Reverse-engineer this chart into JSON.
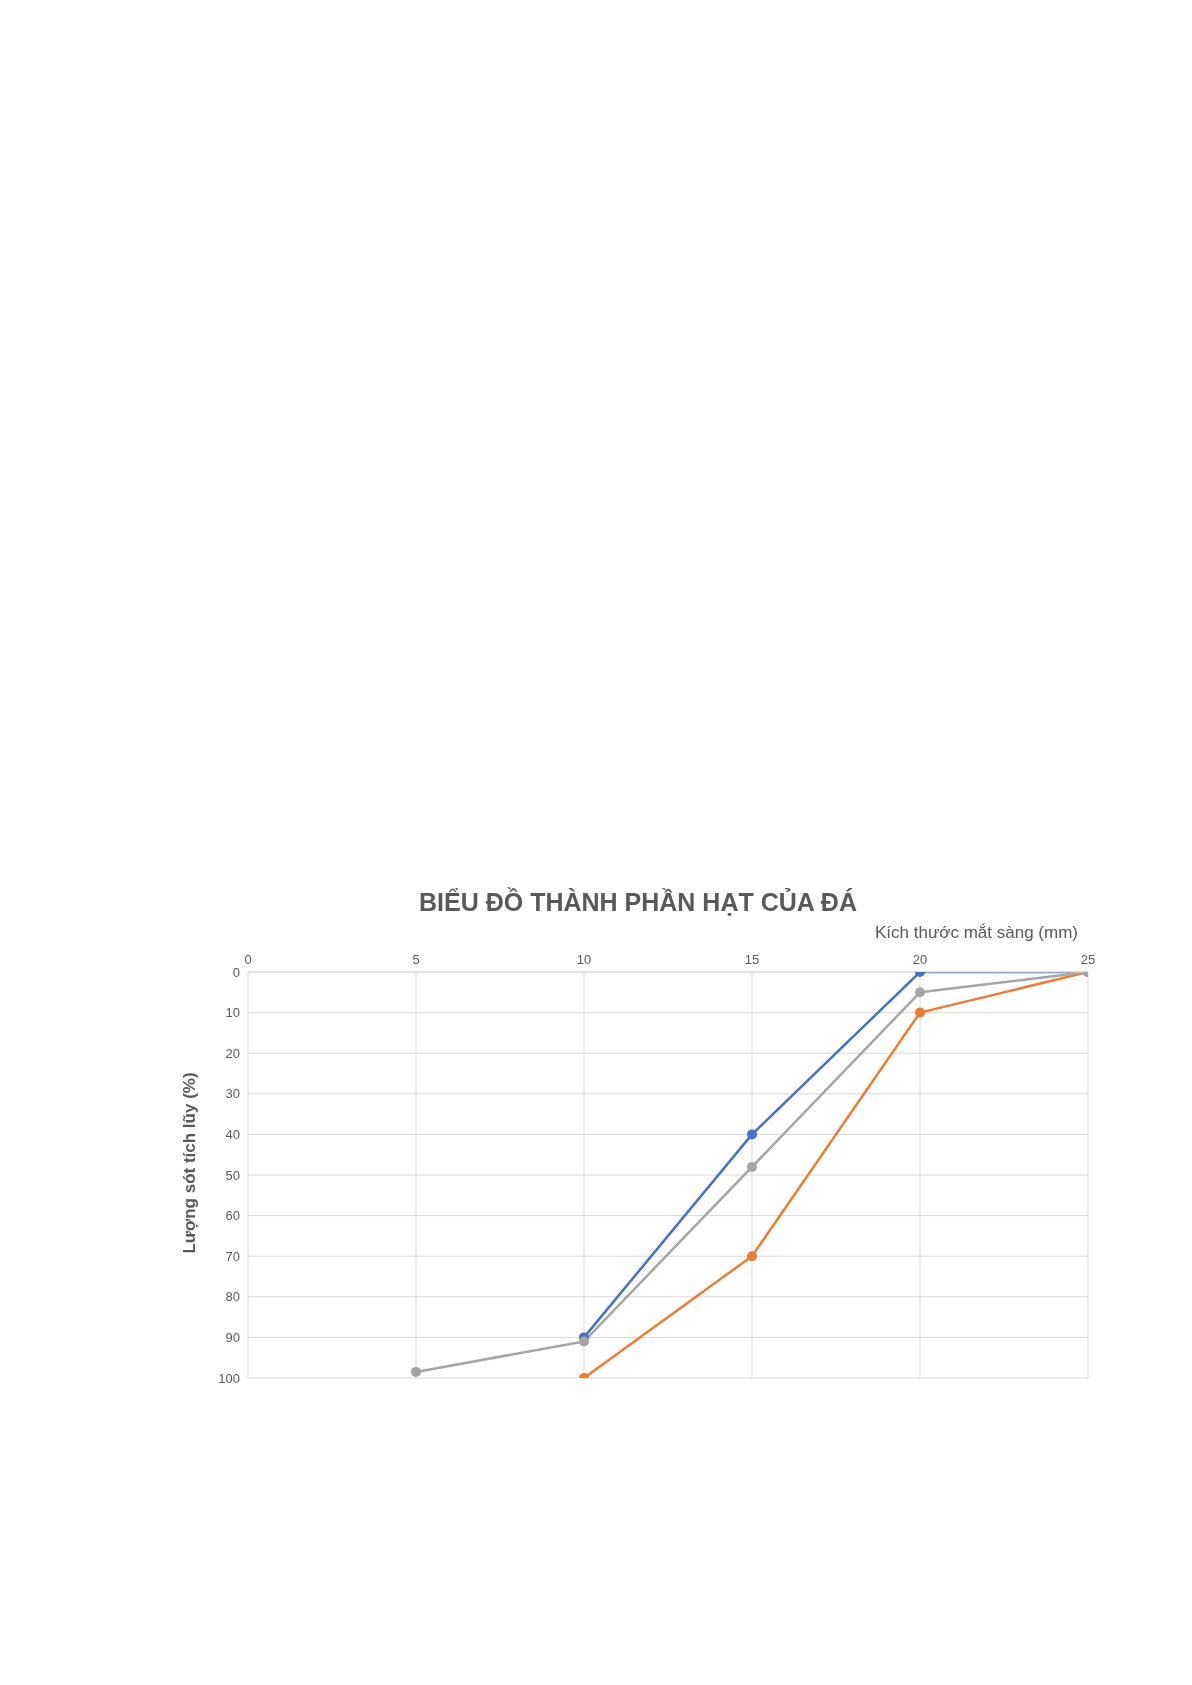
{
  "chart_data": {
    "type": "line",
    "title": "BIỂU ĐỒ THÀNH PHẦN HẠT CỦA ĐÁ",
    "xlabel": "Kích thước mắt sàng (mm)",
    "ylabel": "Lượng sót tích lũy (%)",
    "xlim": [
      0,
      25
    ],
    "xticks": [
      0,
      5,
      10,
      15,
      20,
      25
    ],
    "ylim": [
      100,
      0
    ],
    "yticks": [
      0,
      10,
      20,
      30,
      40,
      50,
      60,
      70,
      80,
      90,
      100
    ],
    "grid": true,
    "marker": "circle",
    "line_style": "solid",
    "series": [
      {
        "color": "#4472c4",
        "x": [
          10,
          15,
          20,
          25
        ],
        "values": [
          90,
          40,
          0,
          0
        ]
      },
      {
        "color": "#ed7d31",
        "x": [
          10,
          15,
          20,
          25
        ],
        "values": [
          100,
          70,
          10,
          0
        ]
      },
      {
        "color": "#a5a5a5",
        "x": [
          5,
          10,
          15,
          20,
          25
        ],
        "values": [
          98.5,
          91,
          48,
          5,
          0
        ]
      }
    ]
  }
}
